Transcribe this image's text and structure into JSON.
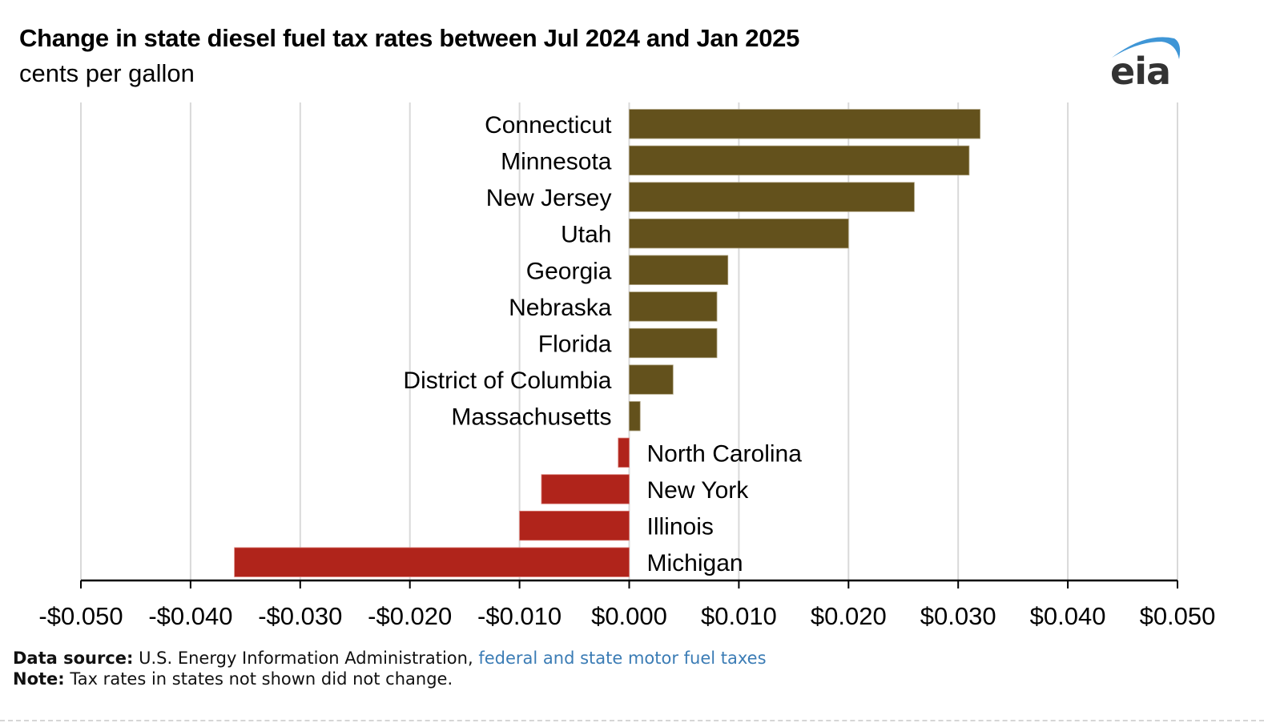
{
  "header": {
    "title": "Change in state diesel fuel tax rates between Jul 2024 and Jan 2025",
    "subtitle": "cents per gallon",
    "logo_text": "eia",
    "logo_icon": "eia-swoosh-logo"
  },
  "colors": {
    "positive": "#63511c",
    "negative": "#b0241b",
    "grid": "#d9d9d9",
    "axis": "#000000",
    "link": "#3b7cb5",
    "logo_swoosh": "#3f96d6",
    "logo_text": "#333333"
  },
  "chart_data": {
    "type": "bar",
    "orientation": "horizontal",
    "title": "Change in state diesel fuel tax rates between Jul 2024 and Jan 2025",
    "subtitle": "cents per gallon",
    "xlabel": "",
    "ylabel": "",
    "xlim": [
      -0.05,
      0.05
    ],
    "grid": true,
    "legend": "none",
    "categories": [
      "Connecticut",
      "Minnesota",
      "New Jersey",
      "Utah",
      "Georgia",
      "Nebraska",
      "Florida",
      "District of Columbia",
      "Massachusetts",
      "North Carolina",
      "New York",
      "Illinois",
      "Michigan"
    ],
    "values": [
      0.032,
      0.031,
      0.026,
      0.02,
      0.009,
      0.008,
      0.008,
      0.004,
      0.001,
      -0.001,
      -0.008,
      -0.01,
      -0.036
    ],
    "xticks": [
      -0.05,
      -0.04,
      -0.03,
      -0.02,
      -0.01,
      0.0,
      0.01,
      0.02,
      0.03,
      0.04,
      0.05
    ],
    "xtick_labels": [
      "-$0.050",
      "-$0.040",
      "-$0.030",
      "-$0.020",
      "-$0.010",
      "$0.000",
      "$0.010",
      "$0.020",
      "$0.030",
      "$0.040",
      "$0.050"
    ]
  },
  "footer": {
    "source_label": "Data source:",
    "source_text": " U.S. Energy Information Administration, ",
    "source_link": "federal and state motor fuel taxes",
    "note_label": "Note:",
    "note_text": " Tax rates in states not shown did not change."
  }
}
